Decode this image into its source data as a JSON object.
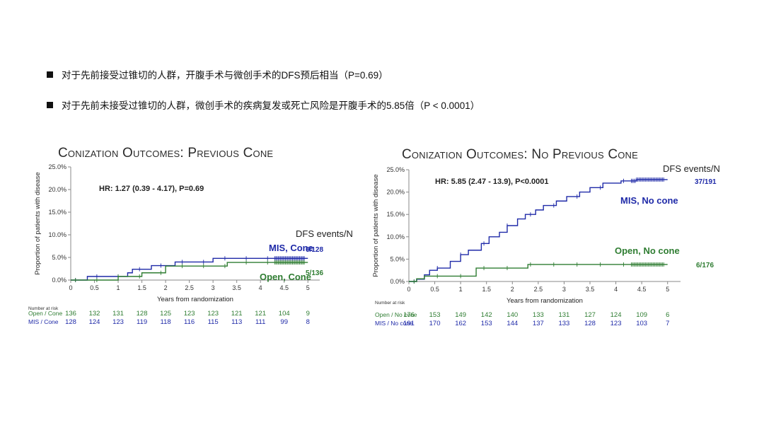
{
  "bullets": [
    "对于先前接受过锥切的人群，开腹手术与微创手术的DFS预后相当（P=0.69）",
    "对于先前未接受过锥切的人群，微创手术的疾病复发或死亡风险是开腹手术的5.85倍（P < 0.0001）"
  ],
  "chart_data": [
    {
      "type": "line",
      "title": "Conization Outcomes: Previous Cone",
      "xlabel": "Years from randomization",
      "ylabel": "Proportion of patients with disease",
      "xlim": [
        0,
        5.25
      ],
      "ylim": [
        0,
        25
      ],
      "xticks": [
        "0",
        "0.5",
        "1",
        "1.5",
        "2",
        "2.5",
        "3",
        "3.5",
        "4",
        "4.5",
        "5"
      ],
      "yticks": [
        "0.0%",
        "5.0%",
        "10.0%",
        "15.0%",
        "20.0%",
        "25.0%"
      ],
      "annotation": "HR: 1.27 (0.39 - 4.17), P=0.69",
      "legend_title": "DFS events/N",
      "series": [
        {
          "name": "MIS, Cone",
          "events": "6/128",
          "color": "#1f2aa8",
          "x": [
            0,
            0.35,
            1.2,
            1.3,
            1.7,
            2.2,
            3.0,
            4.2,
            5.0
          ],
          "y": [
            0,
            0.8,
            1.6,
            2.4,
            3.2,
            4.0,
            4.8,
            4.8,
            4.8
          ]
        },
        {
          "name": "Open, Cone",
          "events": "5/136",
          "color": "#2f7d32",
          "x": [
            0,
            0.7,
            1.0,
            1.5,
            2.0,
            3.3,
            5.0
          ],
          "y": [
            0,
            0,
            0.8,
            1.6,
            3.1,
            3.9,
            3.9
          ]
        }
      ],
      "risk_table": {
        "title": "Number at risk",
        "rows": [
          {
            "label": "Open / Cone",
            "color": "#2f7d32",
            "values": [
              "136",
              "132",
              "131",
              "128",
              "125",
              "123",
              "123",
              "121",
              "121",
              "104",
              "9"
            ]
          },
          {
            "label": "MIS / Cone",
            "color": "#1f2aa8",
            "values": [
              "128",
              "124",
              "123",
              "119",
              "118",
              "116",
              "115",
              "113",
              "111",
              "99",
              "8"
            ]
          }
        ]
      }
    },
    {
      "type": "line",
      "title": "Conization Outcomes:  No Previous Cone",
      "xlabel": "Years from randomization",
      "ylabel": "Proportion of patients with disease",
      "xlim": [
        0,
        5.25
      ],
      "ylim": [
        0,
        25
      ],
      "xticks": [
        "0",
        "0.5",
        "1",
        "1.5",
        "2",
        "2.5",
        "3",
        "3.5",
        "4",
        "4.5",
        "5"
      ],
      "yticks": [
        "0.0%",
        "5.0%",
        "10.0%",
        "15.0%",
        "20.0%",
        "25.0%"
      ],
      "annotation": "HR: 5.85 (2.47 - 13.9), P<0.0001",
      "legend_title": "DFS events/N",
      "series": [
        {
          "name": "MIS, No cone",
          "events": "37/191",
          "color": "#1f2aa8",
          "x": [
            0,
            0.15,
            0.3,
            0.4,
            0.55,
            0.8,
            1.0,
            1.15,
            1.4,
            1.55,
            1.75,
            1.9,
            2.1,
            2.25,
            2.45,
            2.6,
            2.85,
            3.05,
            3.3,
            3.5,
            3.75,
            4.1,
            4.4,
            5.0
          ],
          "y": [
            0,
            0.5,
            1.5,
            2.5,
            3.0,
            4.5,
            6.0,
            7.0,
            8.5,
            10.0,
            11.0,
            12.5,
            14.0,
            15.0,
            16.0,
            17.0,
            18.0,
            19.0,
            20.0,
            21.0,
            22.0,
            22.5,
            22.8,
            22.8
          ]
        },
        {
          "name": "Open, No cone",
          "events": "6/176",
          "color": "#2f7d32",
          "x": [
            0,
            0.15,
            0.3,
            0.5,
            1.3,
            2.3,
            5.0
          ],
          "y": [
            0,
            0.6,
            1.2,
            1.2,
            3.0,
            3.8,
            3.8
          ]
        }
      ],
      "risk_table": {
        "title": "Number at risk",
        "rows": [
          {
            "label": "Open / No cone",
            "color": "#2f7d32",
            "values": [
              "176",
              "153",
              "149",
              "142",
              "140",
              "133",
              "131",
              "127",
              "124",
              "109",
              "6"
            ]
          },
          {
            "label": "MIS / No cone",
            "color": "#1f2aa8",
            "values": [
              "191",
              "170",
              "162",
              "153",
              "144",
              "137",
              "133",
              "128",
              "123",
              "103",
              "7"
            ]
          }
        ]
      }
    }
  ]
}
